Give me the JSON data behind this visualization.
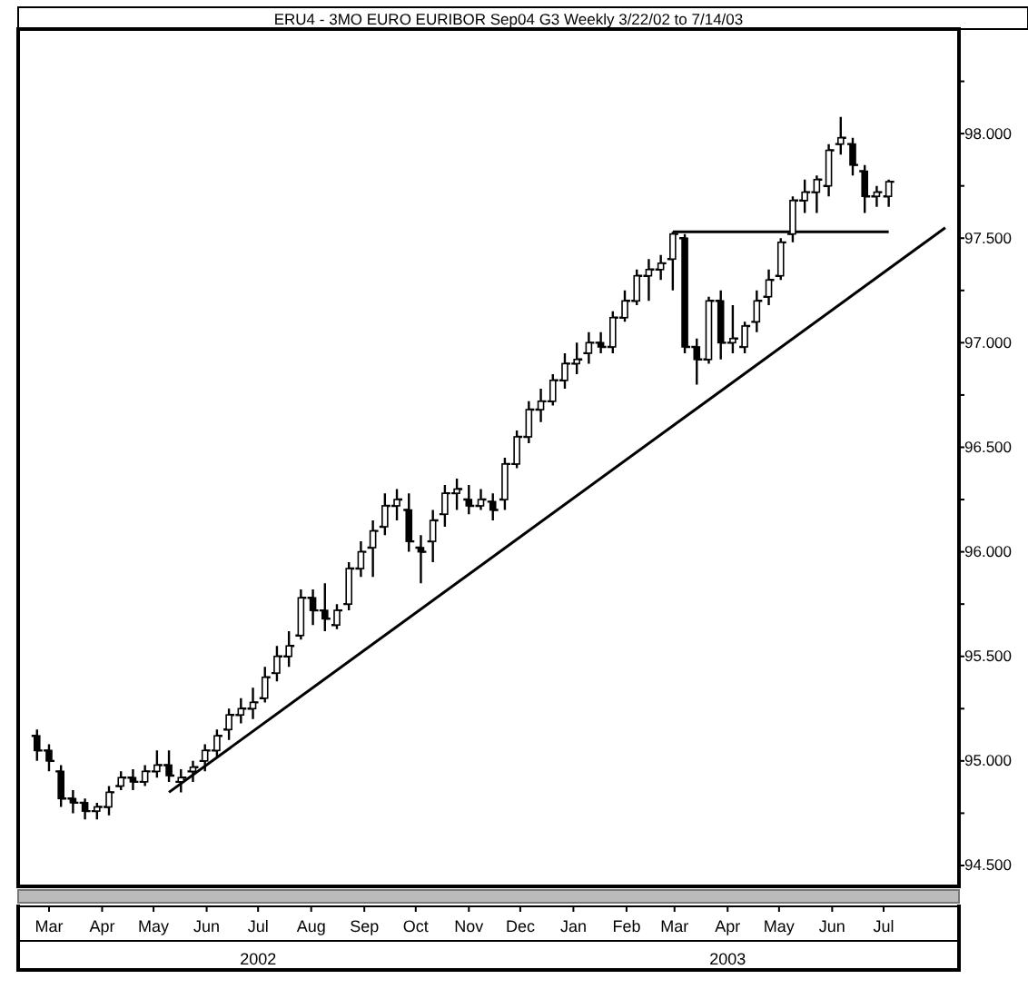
{
  "chart_data": {
    "type": "candlestick",
    "title": "ERU4 - 3MO EURO EURIBOR Sep04 G3 Weekly 3/22/02 to 7/14/03",
    "color": "#000000",
    "x": [
      "2002-03-08",
      "2002-03-15",
      "2002-03-22",
      "2002-03-29",
      "2002-04-05",
      "2002-04-12",
      "2002-04-19",
      "2002-04-26",
      "2002-05-03",
      "2002-05-10",
      "2002-05-17",
      "2002-05-24",
      "2002-05-31",
      "2002-06-07",
      "2002-06-14",
      "2002-06-21",
      "2002-06-28",
      "2002-07-05",
      "2002-07-12",
      "2002-07-19",
      "2002-07-26",
      "2002-08-02",
      "2002-08-09",
      "2002-08-16",
      "2002-08-23",
      "2002-08-30",
      "2002-09-06",
      "2002-09-13",
      "2002-09-20",
      "2002-09-27",
      "2002-10-04",
      "2002-10-11",
      "2002-10-18",
      "2002-10-25",
      "2002-11-01",
      "2002-11-08",
      "2002-11-15",
      "2002-11-22",
      "2002-11-29",
      "2002-12-06",
      "2002-12-13",
      "2002-12-20",
      "2002-12-27",
      "2003-01-03",
      "2003-01-10",
      "2003-01-17",
      "2003-01-24",
      "2003-01-31",
      "2003-02-07",
      "2003-02-14",
      "2003-02-21",
      "2003-02-28",
      "2003-03-07",
      "2003-03-14",
      "2003-03-21",
      "2003-03-28",
      "2003-04-04",
      "2003-04-11",
      "2003-04-18",
      "2003-04-25",
      "2003-05-02",
      "2003-05-09",
      "2003-05-16",
      "2003-05-23",
      "2003-05-30",
      "2003-06-06",
      "2003-06-13",
      "2003-06-20",
      "2003-06-27",
      "2003-07-04",
      "2003-07-11",
      "2003-07-18"
    ],
    "ohlc": [
      [
        95.12,
        95.15,
        95.0,
        95.05
      ],
      [
        95.05,
        95.08,
        94.95,
        95.0
      ],
      [
        94.95,
        94.98,
        94.78,
        94.82
      ],
      [
        94.82,
        94.86,
        94.75,
        94.8
      ],
      [
        94.8,
        94.82,
        94.72,
        94.76
      ],
      [
        94.76,
        94.8,
        94.72,
        94.78
      ],
      [
        94.78,
        94.88,
        94.74,
        94.85
      ],
      [
        94.88,
        94.95,
        94.86,
        94.92
      ],
      [
        94.92,
        94.96,
        94.86,
        94.9
      ],
      [
        94.9,
        94.98,
        94.88,
        94.95
      ],
      [
        94.95,
        95.05,
        94.92,
        94.98
      ],
      [
        94.98,
        95.05,
        94.9,
        94.93
      ],
      [
        94.9,
        94.96,
        94.85,
        94.92
      ],
      [
        94.95,
        95.0,
        94.9,
        94.97
      ],
      [
        95.0,
        95.08,
        94.95,
        95.05
      ],
      [
        95.05,
        95.15,
        95.02,
        95.12
      ],
      [
        95.15,
        95.25,
        95.1,
        95.22
      ],
      [
        95.22,
        95.3,
        95.18,
        95.25
      ],
      [
        95.25,
        95.35,
        95.2,
        95.28
      ],
      [
        95.3,
        95.45,
        95.28,
        95.4
      ],
      [
        95.42,
        95.55,
        95.38,
        95.5
      ],
      [
        95.5,
        95.62,
        95.45,
        95.55
      ],
      [
        95.6,
        95.82,
        95.58,
        95.78
      ],
      [
        95.78,
        95.82,
        95.65,
        95.72
      ],
      [
        95.72,
        95.85,
        95.62,
        95.68
      ],
      [
        95.65,
        95.75,
        95.63,
        95.72
      ],
      [
        95.75,
        95.95,
        95.72,
        95.92
      ],
      [
        95.92,
        96.05,
        95.88,
        96.0
      ],
      [
        96.02,
        96.15,
        95.88,
        96.1
      ],
      [
        96.12,
        96.28,
        96.08,
        96.22
      ],
      [
        96.22,
        96.3,
        96.15,
        96.25
      ],
      [
        96.2,
        96.28,
        96.0,
        96.05
      ],
      [
        96.02,
        96.08,
        95.85,
        96.0
      ],
      [
        96.05,
        96.2,
        95.95,
        96.15
      ],
      [
        96.18,
        96.32,
        96.12,
        96.28
      ],
      [
        96.28,
        96.35,
        96.2,
        96.3
      ],
      [
        96.25,
        96.32,
        96.18,
        96.22
      ],
      [
        96.22,
        96.3,
        96.2,
        96.25
      ],
      [
        96.24,
        96.28,
        96.15,
        96.2
      ],
      [
        96.25,
        96.45,
        96.2,
        96.42
      ],
      [
        96.42,
        96.58,
        96.4,
        96.55
      ],
      [
        96.55,
        96.72,
        96.52,
        96.68
      ],
      [
        96.68,
        96.78,
        96.62,
        96.72
      ],
      [
        96.72,
        96.85,
        96.7,
        96.82
      ],
      [
        96.82,
        96.95,
        96.78,
        96.9
      ],
      [
        96.9,
        97.0,
        96.85,
        96.92
      ],
      [
        96.95,
        97.05,
        96.9,
        97.0
      ],
      [
        97.0,
        97.05,
        96.95,
        96.98
      ],
      [
        96.98,
        97.15,
        96.95,
        97.12
      ],
      [
        97.12,
        97.25,
        97.1,
        97.2
      ],
      [
        97.2,
        97.35,
        97.18,
        97.32
      ],
      [
        97.32,
        97.4,
        97.2,
        97.35
      ],
      [
        97.35,
        97.42,
        97.3,
        97.38
      ],
      [
        97.4,
        97.53,
        97.25,
        97.52
      ],
      [
        97.5,
        97.52,
        96.95,
        96.98
      ],
      [
        96.98,
        97.02,
        96.8,
        96.92
      ],
      [
        96.92,
        97.22,
        96.9,
        97.2
      ],
      [
        97.2,
        97.25,
        96.92,
        97.0
      ],
      [
        97.0,
        97.18,
        96.95,
        97.02
      ],
      [
        96.98,
        97.1,
        96.95,
        97.08
      ],
      [
        97.1,
        97.25,
        97.05,
        97.2
      ],
      [
        97.22,
        97.35,
        97.18,
        97.3
      ],
      [
        97.32,
        97.5,
        97.3,
        97.48
      ],
      [
        97.52,
        97.7,
        97.48,
        97.68
      ],
      [
        97.68,
        97.78,
        97.62,
        97.72
      ],
      [
        97.72,
        97.8,
        97.62,
        97.78
      ],
      [
        97.75,
        97.95,
        97.7,
        97.92
      ],
      [
        97.95,
        98.08,
        97.9,
        97.98
      ],
      [
        97.95,
        97.98,
        97.8,
        97.85
      ],
      [
        97.82,
        97.85,
        97.62,
        97.7
      ],
      [
        97.7,
        97.75,
        97.65,
        97.72
      ],
      [
        97.7,
        97.78,
        97.65,
        97.77
      ]
    ],
    "series": [
      {
        "type": "line",
        "color": "#000000",
        "x": [
          "2002-05-24",
          "2003-08-20"
        ],
        "values": [
          94.85,
          97.55
        ]
      },
      {
        "type": "line",
        "color": "#000000",
        "x": [
          "2003-03-14",
          "2003-07-18"
        ],
        "values": [
          97.53,
          97.53
        ]
      }
    ],
    "xlim": [
      "2002-02-25",
      "2003-08-28"
    ],
    "xticks": [
      {
        "value": "2002-03-15",
        "label": "Mar"
      },
      {
        "value": "2002-04-15",
        "label": "Apr"
      },
      {
        "value": "2002-05-15",
        "label": "May"
      },
      {
        "value": "2002-06-15",
        "label": "Jun"
      },
      {
        "value": "2002-07-15",
        "label": "Jul"
      },
      {
        "value": "2002-08-15",
        "label": "Aug"
      },
      {
        "value": "2002-09-15",
        "label": "Sep"
      },
      {
        "value": "2002-10-15",
        "label": "Oct"
      },
      {
        "value": "2002-11-15",
        "label": "Nov"
      },
      {
        "value": "2002-12-15",
        "label": "Dec"
      },
      {
        "value": "2003-01-15",
        "label": "Jan"
      },
      {
        "value": "2003-02-15",
        "label": "Feb"
      },
      {
        "value": "2003-03-15",
        "label": "Mar"
      },
      {
        "value": "2003-04-15",
        "label": "Apr"
      },
      {
        "value": "2003-05-15",
        "label": "May"
      },
      {
        "value": "2003-06-15",
        "label": "Jun"
      },
      {
        "value": "2003-07-15",
        "label": "Jul"
      }
    ],
    "x2lim": [
      "2002-02-25",
      "2003-08-28"
    ],
    "x2ticks": [
      {
        "value": "2002-07-15",
        "label": "2002"
      },
      {
        "value": "2003-04-15",
        "label": "2003"
      }
    ],
    "ylim": [
      94.4,
      98.5
    ],
    "yticks": [
      {
        "value": 94.5,
        "label": "94.500"
      },
      {
        "value": 94.75,
        "label": null
      },
      {
        "value": 95,
        "label": "95.000"
      },
      {
        "value": 95.25,
        "label": null
      },
      {
        "value": 95.5,
        "label": "95.500"
      },
      {
        "value": 95.75,
        "label": null
      },
      {
        "value": 96,
        "label": "96.000"
      },
      {
        "value": 96.25,
        "label": null
      },
      {
        "value": 96.5,
        "label": "96.500"
      },
      {
        "value": 96.75,
        "label": null
      },
      {
        "value": 97,
        "label": "97.000"
      },
      {
        "value": 97.25,
        "label": null
      },
      {
        "value": 97.5,
        "label": "97.500"
      },
      {
        "value": 97.75,
        "label": null
      },
      {
        "value": 98,
        "label": "98.000"
      },
      {
        "value": 98.25,
        "label": null
      }
    ]
  }
}
